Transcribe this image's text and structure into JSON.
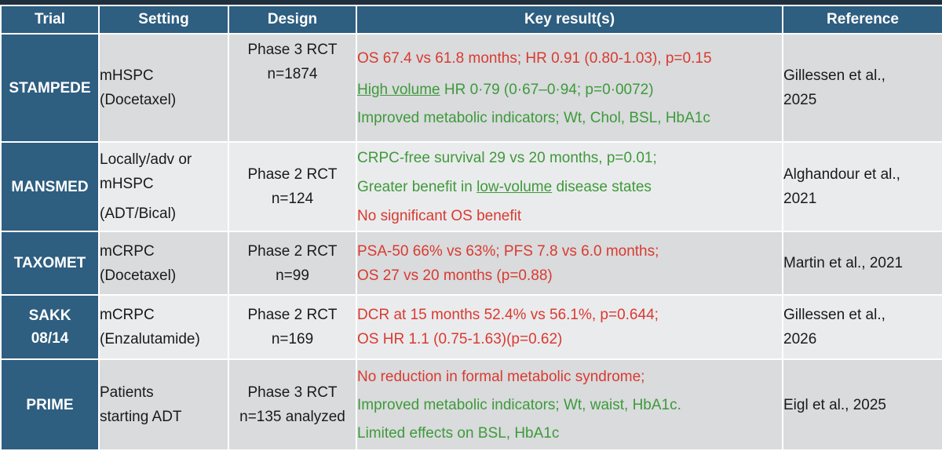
{
  "colors": {
    "header_bg": "#2e5e80",
    "row_bg_dark": "#d9dbdd",
    "row_bg_light": "#eaebed",
    "red": "#d93a30",
    "green": "#3e9a3a"
  },
  "headers": {
    "trial": "Trial",
    "setting": "Setting",
    "design": "Design",
    "key_results": "Key result(s)",
    "reference": "Reference"
  },
  "rows": [
    {
      "trial": "STAMPEDE",
      "setting": [
        "mHSPC",
        "(Docetaxel)"
      ],
      "design": [
        "Phase 3 RCT",
        "n=1874"
      ],
      "results": {
        "r1": "OS 67.4 vs 61.8 months; HR 0.91 (0.80-1.03), p=0.15",
        "r2_underlined": "High volume",
        "r2_rest": " HR 0·79 (0·67–0·94; p=0·0072)",
        "r3": "Improved metabolic indicators; Wt, Chol, BSL, HbA1c"
      },
      "reference": [
        "Gillessen et al.,",
        "2025"
      ]
    },
    {
      "trial": "MANSMED",
      "setting": [
        "Locally/adv or",
        "mHSPC",
        "(ADT/Bical)"
      ],
      "design": [
        "Phase 2 RCT",
        "n=124"
      ],
      "results": {
        "r1": "CRPC-free survival 29 vs 20 months, p=0.01;",
        "r2_pre": "Greater benefit in ",
        "r2_underlined": "low-volume",
        "r2_post": " disease states",
        "r3": "No significant OS benefit"
      },
      "reference": [
        "Alghandour et al.,",
        "2021"
      ]
    },
    {
      "trial": "TAXOMET",
      "setting": [
        "mCRPC",
        "(Docetaxel)"
      ],
      "design": [
        "Phase 2 RCT",
        "n=99"
      ],
      "results": {
        "r1": "PSA-50 66% vs 63%; PFS 7.8 vs 6.0 months;",
        "r2": "OS 27 vs 20 months (p=0.88)"
      },
      "reference": [
        "Martin et al., 2021"
      ]
    },
    {
      "trial": [
        "SAKK",
        "08/14"
      ],
      "setting": [
        "mCRPC",
        "(Enzalutamide)"
      ],
      "design": [
        "Phase 2 RCT",
        "n=169"
      ],
      "results": {
        "r1": "DCR at 15 months 52.4% vs 56.1%, p=0.644;",
        "r2": "OS HR 1.1 (0.75-1.63)(p=0.62)"
      },
      "reference": [
        "Gillessen et al.,",
        "2026"
      ]
    },
    {
      "trial": "PRIME",
      "setting": [
        "Patients",
        "starting ADT"
      ],
      "design": [
        "Phase 3 RCT",
        "n=135 analyzed"
      ],
      "results": {
        "r1": "No reduction in formal metabolic syndrome;",
        "r2": "Improved metabolic indicators; Wt, waist, HbA1c.",
        "r3": "Limited effects on BSL, HbA1c"
      },
      "reference": [
        "Eigl et al., 2025"
      ]
    }
  ]
}
